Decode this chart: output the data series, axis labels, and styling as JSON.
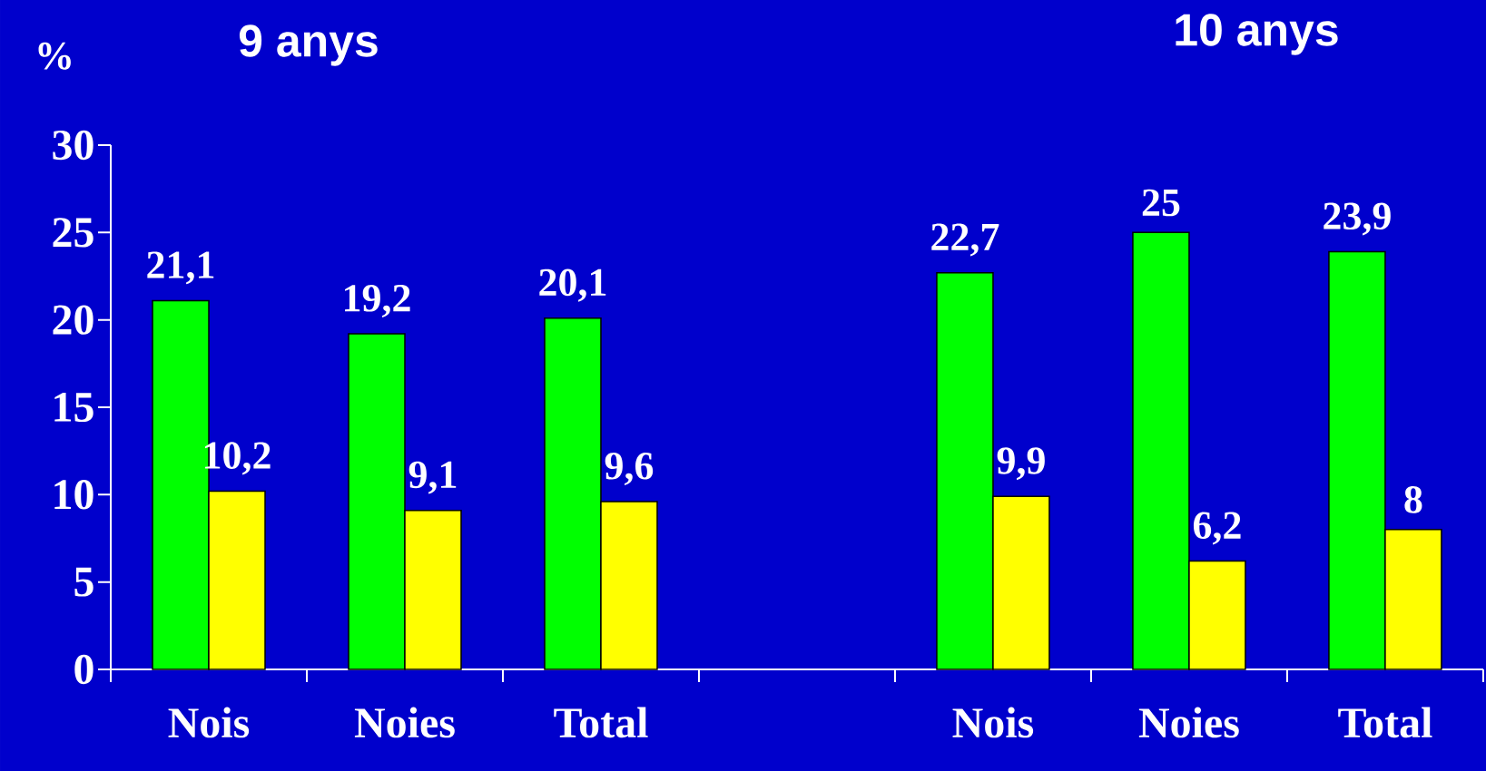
{
  "chart_data": {
    "type": "bar",
    "ylabel": "%",
    "annotations": [
      "9 anys",
      "10 anys"
    ],
    "categories": [
      "Nois",
      "Noies",
      "Total",
      null,
      "Nois",
      "Noies",
      "Total"
    ],
    "series": [
      {
        "color": "#00ff00",
        "values": [
          21.1,
          19.2,
          20.1,
          null,
          22.7,
          25,
          23.9
        ],
        "value_labels": [
          "21,1",
          "19,2",
          "20,1",
          null,
          "22,7",
          "25",
          "23,9"
        ]
      },
      {
        "color": "#ffff00",
        "values": [
          10.2,
          9.1,
          9.6,
          null,
          9.9,
          6.2,
          8
        ],
        "value_labels": [
          "10,2",
          "9,1",
          "9,6",
          null,
          "9,9",
          "6,2",
          "8"
        ]
      }
    ],
    "ylim": [
      0,
      30
    ],
    "yticks": [
      0,
      5,
      10,
      15,
      20,
      25,
      30
    ],
    "grid": false
  }
}
